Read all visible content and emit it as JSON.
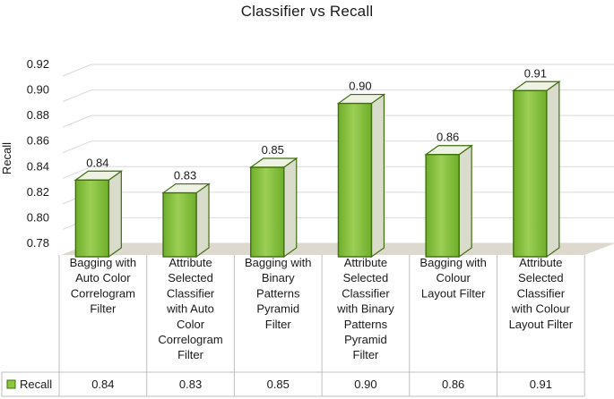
{
  "chart_data": {
    "type": "bar",
    "title": "Classifier vs Recall",
    "xlabel": "",
    "ylabel": "Recall",
    "categories": [
      "Bagging with Auto Color Correlogram Filter",
      "Attribute Selected Classifier with Auto Color Correlogram Filter",
      "Bagging with Binary Patterns Pyramid Filter",
      "Attribute Selected Classifier with Binary Patterns Pyramid Filter",
      "Bagging with Colour Layout Filter",
      "Attribute Selected Classifier with Colour Layout Filter"
    ],
    "category_lines": [
      [
        "Bagging with",
        "Auto Color",
        "Correlogram",
        "Filter"
      ],
      [
        "Attribute",
        "Selected",
        "Classifier",
        "with Auto",
        "Color",
        "Correlogram",
        "Filter"
      ],
      [
        "Bagging with",
        "Binary",
        "Patterns",
        "Pyramid",
        "Filter"
      ],
      [
        "Attribute",
        "Selected",
        "Classifier",
        "with Binary",
        "Patterns",
        "Pyramid",
        "Filter"
      ],
      [
        "Bagging with",
        "Colour",
        "Layout Filter"
      ],
      [
        "Attribute",
        "Selected",
        "Classifier",
        "with Colour",
        "Layout Filter"
      ]
    ],
    "series": [
      {
        "name": "Recall",
        "values": [
          0.84,
          0.83,
          0.85,
          0.9,
          0.86,
          0.91
        ]
      }
    ],
    "data_labels": [
      "0.84",
      "0.83",
      "0.85",
      "0.90",
      "0.86",
      "0.91"
    ],
    "y_ticks": [
      "0.78",
      "0.80",
      "0.82",
      "0.84",
      "0.86",
      "0.88",
      "0.90",
      "0.92"
    ],
    "ylim": [
      0.78,
      0.92
    ],
    "grid": true,
    "legend": "data-table",
    "colors": {
      "bar_front": "#8dc63f",
      "bar_front_dark": "#5e9a1c",
      "bar_side": "#d9dccb",
      "bar_top": "#eef2e2",
      "bar_stroke": "#3f6e0e",
      "floor": "#ddd9cf",
      "grid": "#d9d9d9",
      "table_border": "#bfbfbf"
    }
  }
}
